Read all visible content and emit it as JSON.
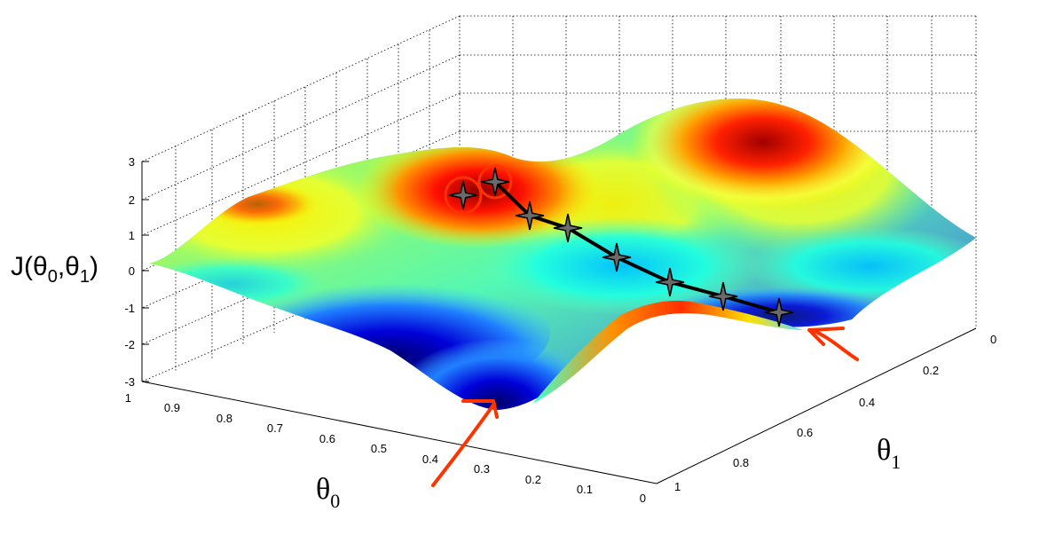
{
  "chart_data": {
    "type": "surface",
    "title": "",
    "zlabel": "J(θ0,θ1)",
    "xlabel": "θ0",
    "ylabel": "θ1",
    "xlim": [
      0,
      1
    ],
    "ylim": [
      0,
      1
    ],
    "zlim": [
      -3,
      3
    ],
    "x_ticks": [
      "1",
      "0.9",
      "0.8",
      "0.7",
      "0.6",
      "0.5",
      "0.4",
      "0.3",
      "0.2",
      "0.1",
      "0"
    ],
    "y_ticks": [
      "0",
      "0.2",
      "0.4",
      "0.6",
      "0.8",
      "1"
    ],
    "z_ticks": [
      "3",
      "2",
      "1",
      "0",
      "-1",
      "-2",
      "-3"
    ],
    "grid": true,
    "colormap": [
      "#00008f",
      "#0000ff",
      "#00ffff",
      "#80ff80",
      "#ffff00",
      "#ff8000",
      "#ff0000",
      "#800000"
    ],
    "descent_path": {
      "marker": "star",
      "color": "#000000",
      "points": 8
    },
    "annotations": {
      "circles": 2,
      "arrows": 2,
      "color": "#ff3300"
    }
  }
}
